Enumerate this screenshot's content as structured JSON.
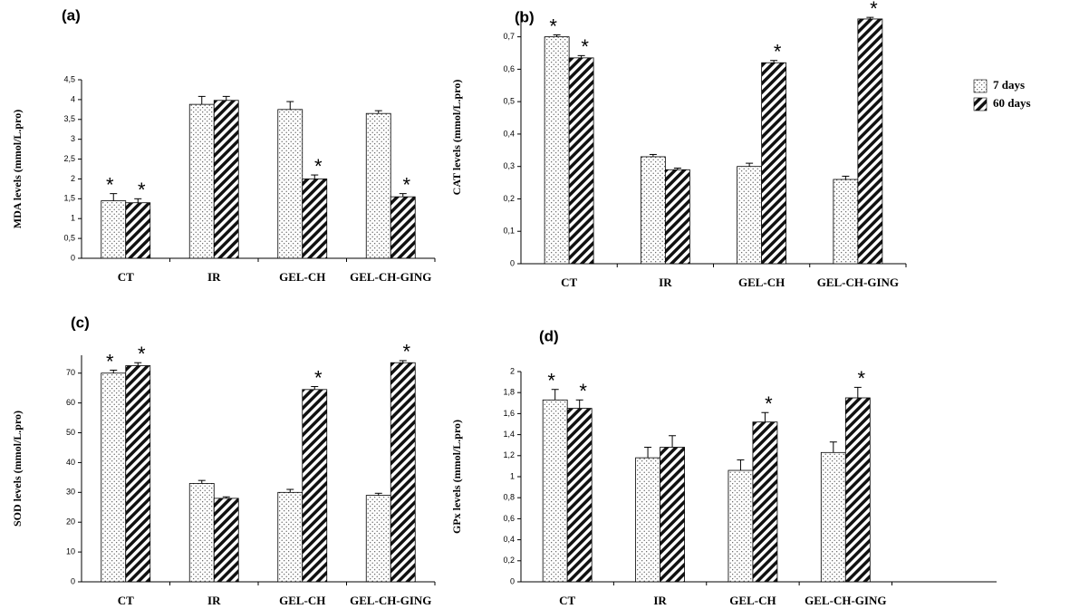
{
  "chart_data": [
    {
      "type": "bar",
      "title": "(a)",
      "ylabel": "MDA levels (mmol/L.pro)",
      "categories": [
        "CT",
        "IR",
        "GEL-CH",
        "GEL-CH-GING"
      ],
      "series": [
        {
          "name": "7 days",
          "values": [
            1.45,
            3.88,
            3.75,
            3.65
          ],
          "errors": [
            0.18,
            0.2,
            0.2,
            0.07
          ],
          "annotations": [
            "*",
            null,
            null,
            null
          ]
        },
        {
          "name": "60 days",
          "values": [
            1.4,
            3.98,
            2.0,
            1.55
          ],
          "errors": [
            0.1,
            0.1,
            0.1,
            0.08
          ],
          "annotations": [
            "*",
            null,
            "*",
            "*"
          ]
        }
      ],
      "ylim": [
        0,
        4.5
      ],
      "yticks": [
        0,
        {
          "value": 0.5,
          "label": "0,5"
        },
        1,
        {
          "value": 1.5,
          "label": "1,5"
        },
        2,
        {
          "value": 2.5,
          "label": "2,5"
        },
        3,
        {
          "value": 3.5,
          "label": "3,5"
        },
        4,
        {
          "value": 4.5,
          "label": "4,5"
        }
      ]
    },
    {
      "type": "bar",
      "title": "(b)",
      "ylabel": "CAT levels (mmol/L.pro)",
      "legend": "right",
      "categories": [
        "CT",
        "IR",
        "GEL-CH",
        "GEL-CH-GING"
      ],
      "series": [
        {
          "name": "7 days",
          "values": [
            0.7,
            0.33,
            0.3,
            0.26
          ],
          "errors": [
            0.006,
            0.007,
            0.01,
            0.01
          ],
          "annotations": [
            "*",
            null,
            null,
            null
          ]
        },
        {
          "name": "60 days",
          "values": [
            0.635,
            0.29,
            0.62,
            0.755
          ],
          "errors": [
            0.007,
            0.005,
            0.007,
            0.005
          ],
          "annotations": [
            "*",
            null,
            "*",
            "*"
          ]
        }
      ],
      "ylim": [
        0,
        0.78
      ],
      "yticks": [
        0,
        {
          "value": 0.1,
          "label": "0,1"
        },
        {
          "value": 0.2,
          "label": "0,2"
        },
        {
          "value": 0.3,
          "label": "0,3"
        },
        {
          "value": 0.4,
          "label": "0,4"
        },
        {
          "value": 0.5,
          "label": "0,5"
        },
        {
          "value": 0.6,
          "label": "0,6"
        },
        {
          "value": 0.7,
          "label": "0,7"
        }
      ]
    },
    {
      "type": "bar",
      "title": "(c)",
      "ylabel": "SOD levels (mmol/L.pro)",
      "categories": [
        "CT",
        "IR",
        "GEL-CH",
        "GEL-CH-GING"
      ],
      "series": [
        {
          "name": "7 days",
          "values": [
            70,
            33,
            30,
            29
          ],
          "errors": [
            1,
            1,
            1,
            0.7
          ],
          "annotations": [
            "*",
            null,
            null,
            null
          ]
        },
        {
          "name": "60 days",
          "values": [
            72.5,
            28,
            64.5,
            73.5
          ],
          "errors": [
            1,
            0.5,
            1,
            0.7
          ],
          "annotations": [
            "*",
            null,
            "*",
            "*"
          ]
        }
      ],
      "ylim": [
        0,
        76
      ],
      "yticks": [
        0,
        10,
        20,
        30,
        40,
        50,
        60,
        70
      ]
    },
    {
      "type": "bar",
      "title": "(d)",
      "ylabel": "GPx levels (mmol/L.pro)",
      "categories": [
        "CT",
        "IR",
        "GEL-CH",
        "GEL-CH-GING"
      ],
      "series": [
        {
          "name": "7 days",
          "values": [
            1.73,
            1.18,
            1.06,
            1.23
          ],
          "errors": [
            0.1,
            0.1,
            0.1,
            0.1
          ],
          "annotations": [
            "*",
            null,
            null,
            null
          ]
        },
        {
          "name": "60 days",
          "values": [
            1.65,
            1.28,
            1.52,
            1.75
          ],
          "errors": [
            0.08,
            0.11,
            0.09,
            0.1
          ],
          "annotations": [
            "*",
            null,
            "*",
            "*"
          ]
        }
      ],
      "ylim": [
        0,
        2
      ],
      "yticks": [
        0,
        {
          "value": 0.2,
          "label": "0,2"
        },
        {
          "value": 0.4,
          "label": "0,4"
        },
        {
          "value": 0.6,
          "label": "0,6"
        },
        {
          "value": 0.8,
          "label": "0,8"
        },
        1,
        {
          "value": 1.2,
          "label": "1,2"
        },
        {
          "value": 1.4,
          "label": "1,4"
        },
        {
          "value": 1.6,
          "label": "1,6"
        },
        {
          "value": 1.8,
          "label": "1,8"
        },
        2
      ]
    }
  ]
}
